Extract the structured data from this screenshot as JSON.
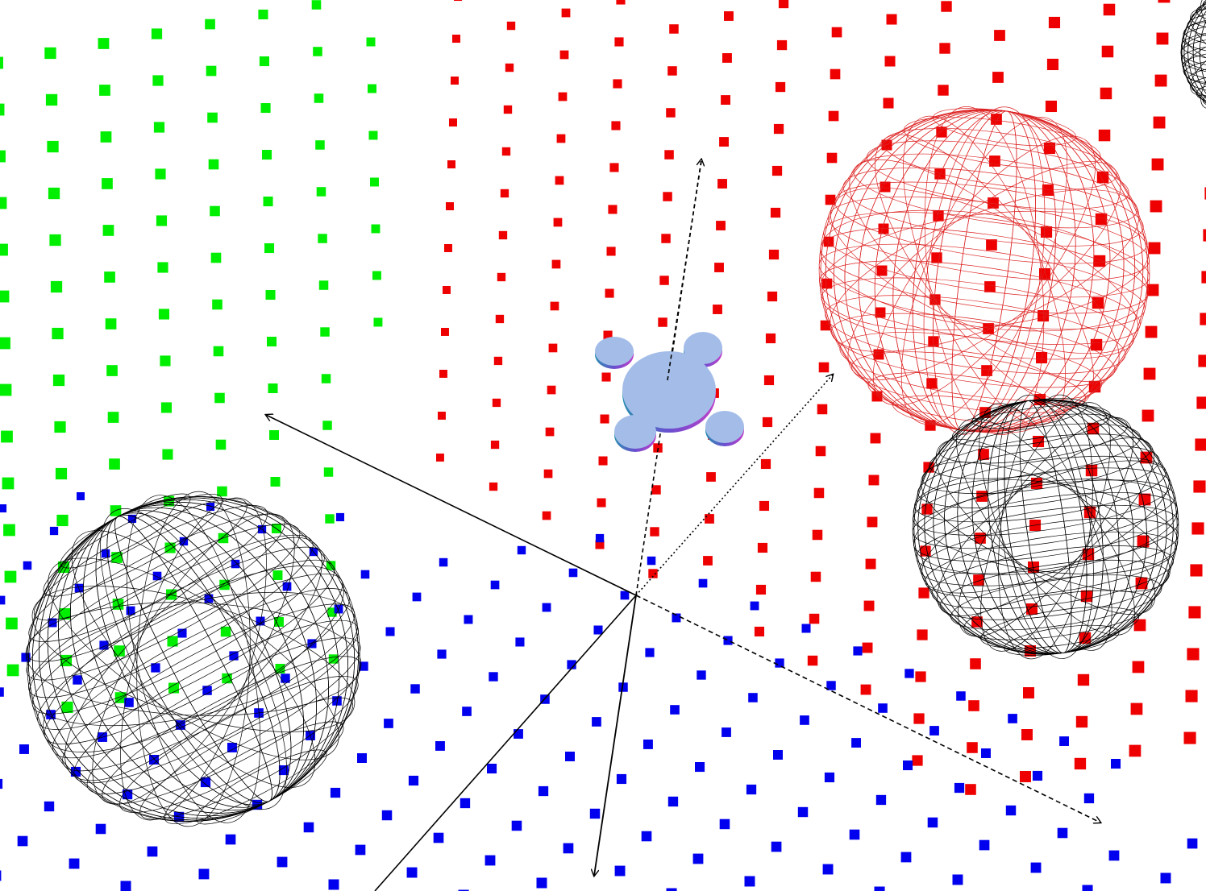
{
  "scene": {
    "background": "#ffffff",
    "point_clouds": [
      {
        "name": "green-point-grid",
        "color": "#00ee00"
      },
      {
        "name": "red-point-grid",
        "color": "#ee0000"
      },
      {
        "name": "blue-point-grid",
        "color": "#0000ee"
      }
    ],
    "wireframe_spheres": [
      {
        "name": "left-black-sphere",
        "color": "#000000"
      },
      {
        "name": "red-sphere",
        "color": "#dd2222"
      },
      {
        "name": "right-black-sphere",
        "color": "#000000"
      },
      {
        "name": "corner-black-sphere",
        "color": "#000000"
      }
    ],
    "robot": {
      "name": "quadrotor-model",
      "body_color": "#a4bde8",
      "shade_color": "#8a3fc0"
    },
    "axes": {
      "color": "#000000"
    }
  }
}
